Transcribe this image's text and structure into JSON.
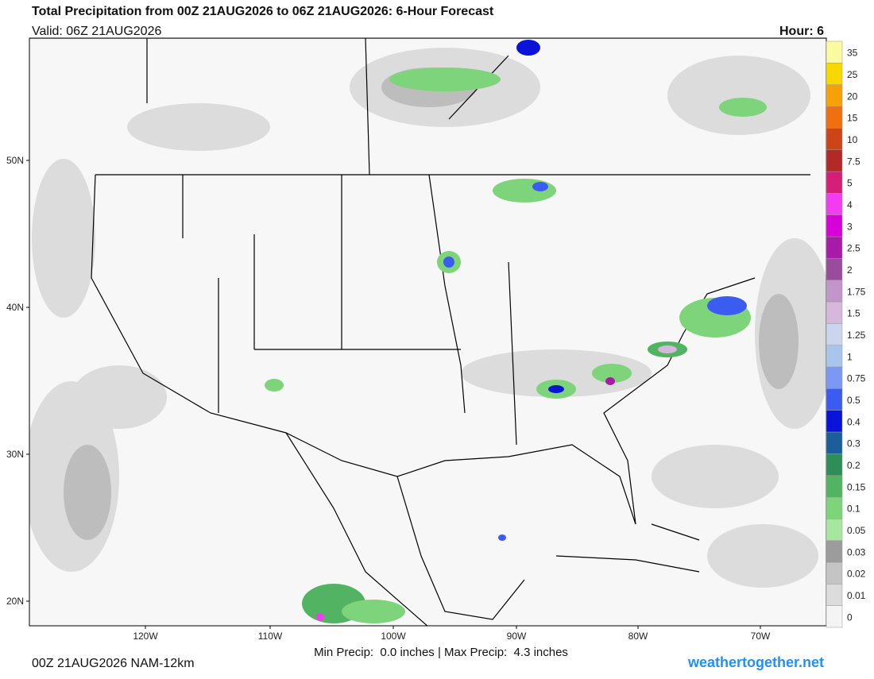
{
  "header": {
    "title": "Total Precipitation from 00Z 21AUG2026 to 06Z 21AUG2026: 6-Hour Forecast",
    "valid": "Valid: 06Z 21AUG2026",
    "hour": "Hour: 6"
  },
  "map": {
    "lat_labels": [
      "50N",
      "40N",
      "30N",
      "20N"
    ],
    "lon_labels": [
      "120W",
      "110W",
      "100W",
      "90W",
      "80W",
      "70W"
    ]
  },
  "colorbar": {
    "levels": [
      {
        "label": "0",
        "color": "#f4f4f4"
      },
      {
        "label": "0.01",
        "color": "#dcdcdc"
      },
      {
        "label": "0.02",
        "color": "#c4c4c4"
      },
      {
        "label": "0.03",
        "color": "#9c9c9c"
      },
      {
        "label": "0.05",
        "color": "#a6e6a0"
      },
      {
        "label": "0.1",
        "color": "#7ed47a"
      },
      {
        "label": "0.15",
        "color": "#52b462"
      },
      {
        "label": "0.2",
        "color": "#2e8e58"
      },
      {
        "label": "0.3",
        "color": "#1a5e9a"
      },
      {
        "label": "0.4",
        "color": "#0a14d8"
      },
      {
        "label": "0.5",
        "color": "#3a5cf0"
      },
      {
        "label": "0.75",
        "color": "#7a98f4"
      },
      {
        "label": "1",
        "color": "#a8c6ec"
      },
      {
        "label": "1.25",
        "color": "#cad6ee"
      },
      {
        "label": "1.5",
        "color": "#d6b8dc"
      },
      {
        "label": "1.75",
        "color": "#c296c8"
      },
      {
        "label": "2",
        "color": "#9a4c9c"
      },
      {
        "label": "2.5",
        "color": "#a81aa8"
      },
      {
        "label": "3",
        "color": "#d800d8"
      },
      {
        "label": "4",
        "color": "#f23cf2"
      },
      {
        "label": "5",
        "color": "#d41e78"
      },
      {
        "label": "7.5",
        "color": "#b42828"
      },
      {
        "label": "10",
        "color": "#cc4418"
      },
      {
        "label": "15",
        "color": "#f07010"
      },
      {
        "label": "20",
        "color": "#f8a008"
      },
      {
        "label": "25",
        "color": "#f8d800"
      },
      {
        "label": "35",
        "color": "#fafaa0"
      }
    ]
  },
  "footer": {
    "run": "00Z 21AUG2026 NAM-12km",
    "stats": "Min Precip:  0.0 inches | Max Precip:  4.3 inches",
    "site": "weathertogether.net"
  }
}
